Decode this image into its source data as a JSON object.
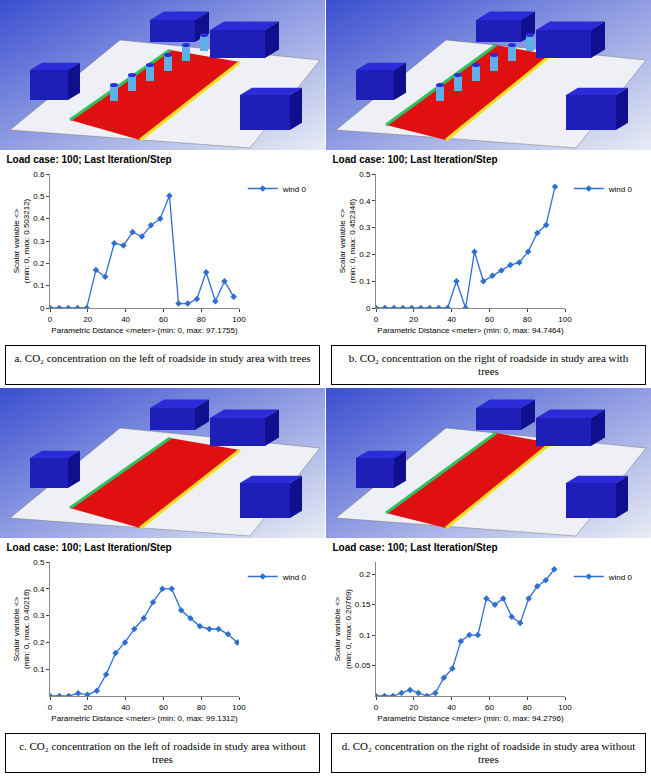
{
  "chart_data": [
    {
      "type": "line",
      "title": "Load case: 100; Last Iteration/Step",
      "caption": "a. CO₂ concentration on the left of roadside in study area with trees",
      "xlabel": "Parametric Distance <meter> (min: 0, max: 97.1755)",
      "ylabel": [
        "Scalar variable <>",
        "(min: 0, max: 0.503212)"
      ],
      "x": [
        0,
        4.9,
        9.7,
        14.6,
        19.4,
        24.3,
        29.2,
        34.0,
        38.9,
        43.7,
        48.6,
        53.4,
        58.3,
        63.2,
        68.0,
        72.9,
        77.7,
        82.6,
        87.5,
        92.3,
        97.2
      ],
      "series": [
        {
          "name": "wind 0",
          "color": "#2f6fd0",
          "marker": "diamond",
          "values": [
            0,
            0,
            0,
            0,
            0,
            0.17,
            0.14,
            0.29,
            0.28,
            0.34,
            0.32,
            0.37,
            0.4,
            0.503,
            0.02,
            0.02,
            0.04,
            0.16,
            0.03,
            0.12,
            0.05
          ]
        }
      ],
      "xlim": [
        0,
        100
      ],
      "xticks": [
        0,
        20,
        40,
        60,
        80,
        100
      ],
      "ylim": [
        0,
        0.6
      ],
      "yticks": [
        0,
        0.1,
        0.2,
        0.3,
        0.4,
        0.5,
        0.6
      ],
      "grid": false,
      "legend": "right"
    },
    {
      "type": "line",
      "title": "Load case: 100; Last Iteration/Step",
      "caption": "b. CO₂ concentration on the right of roadside in study area with trees",
      "xlabel": "Parametric Distance <meter> (min: 0, max: 94.7464)",
      "ylabel": [
        "Scalar variable <>",
        "(min: 0, max: 0.452346)"
      ],
      "x": [
        0,
        4.7,
        9.5,
        14.2,
        18.9,
        23.7,
        28.4,
        33.2,
        37.9,
        42.6,
        47.4,
        52.1,
        56.8,
        61.6,
        66.3,
        71.1,
        75.8,
        80.5,
        85.3,
        90.0,
        94.7
      ],
      "series": [
        {
          "name": "wind 0",
          "color": "#2f6fd0",
          "marker": "diamond",
          "values": [
            0,
            0,
            0,
            0,
            0,
            0,
            0,
            0,
            0,
            0.1,
            0,
            0.21,
            0.1,
            0.12,
            0.14,
            0.16,
            0.17,
            0.21,
            0.28,
            0.31,
            0.452
          ]
        }
      ],
      "xlim": [
        0,
        100
      ],
      "xticks": [
        0,
        20,
        40,
        60,
        80,
        100
      ],
      "ylim": [
        0,
        0.5
      ],
      "yticks": [
        0,
        0.1,
        0.2,
        0.3,
        0.4,
        0.5
      ],
      "grid": false,
      "legend": "right"
    },
    {
      "type": "line",
      "title": "Load case: 100; Last Iteration/Step",
      "caption": "c. CO₂ concentration on the left of roadside in study area without trees",
      "xlabel": "Parametric Distance <meter> (min: 0, max: 99.1312)",
      "ylabel": [
        "Scalar variable <>",
        "(min: 0, max: 0.40216)"
      ],
      "x": [
        0,
        5.0,
        9.9,
        14.9,
        19.8,
        24.8,
        29.7,
        34.7,
        39.7,
        44.6,
        49.6,
        54.5,
        59.5,
        64.4,
        69.4,
        74.3,
        79.3,
        84.3,
        89.2,
        94.2,
        99.1
      ],
      "series": [
        {
          "name": "wind 0",
          "color": "#2f6fd0",
          "marker": "diamond",
          "values": [
            0,
            0,
            0,
            0.01,
            0.005,
            0.02,
            0.08,
            0.16,
            0.2,
            0.25,
            0.29,
            0.35,
            0.4,
            0.4,
            0.32,
            0.29,
            0.26,
            0.25,
            0.25,
            0.23,
            0.2
          ]
        }
      ],
      "xlim": [
        0,
        100
      ],
      "xticks": [
        0,
        20,
        40,
        60,
        80,
        100
      ],
      "ylim": [
        0,
        0.5
      ],
      "yticks": [
        0.1,
        0.2,
        0.3,
        0.4,
        0.5
      ],
      "grid": false,
      "legend": "right"
    },
    {
      "type": "line",
      "title": "Load case: 100; Last Iteration/Step",
      "caption": "d. CO₂ concentration on the right of roadside in study area without trees",
      "xlabel": "Parametric Distance <meter> (min: 0, max: 94.2796)",
      "ylabel": [
        "Scalar variable <>",
        "(min: 0, max: 0.20769)"
      ],
      "x": [
        0,
        4.5,
        9.0,
        13.5,
        18.0,
        22.4,
        26.9,
        31.4,
        35.9,
        40.4,
        44.9,
        49.4,
        53.9,
        58.4,
        62.9,
        67.3,
        71.8,
        76.3,
        80.8,
        85.3,
        89.8,
        94.3
      ],
      "series": [
        {
          "name": "wind 0",
          "color": "#2f6fd0",
          "marker": "diamond",
          "values": [
            0,
            0,
            0,
            0.005,
            0.01,
            0.005,
            0,
            0.005,
            0.03,
            0.045,
            0.09,
            0.1,
            0.1,
            0.16,
            0.15,
            0.16,
            0.13,
            0.12,
            0.16,
            0.18,
            0.19,
            0.208
          ]
        }
      ],
      "xlim": [
        0,
        100
      ],
      "xticks": [
        0,
        20,
        40,
        60,
        80,
        100
      ],
      "ylim": [
        0,
        0.22
      ],
      "yticks": [
        0.05,
        0.1,
        0.15,
        0.2
      ],
      "grid": false,
      "legend": "right"
    }
  ]
}
